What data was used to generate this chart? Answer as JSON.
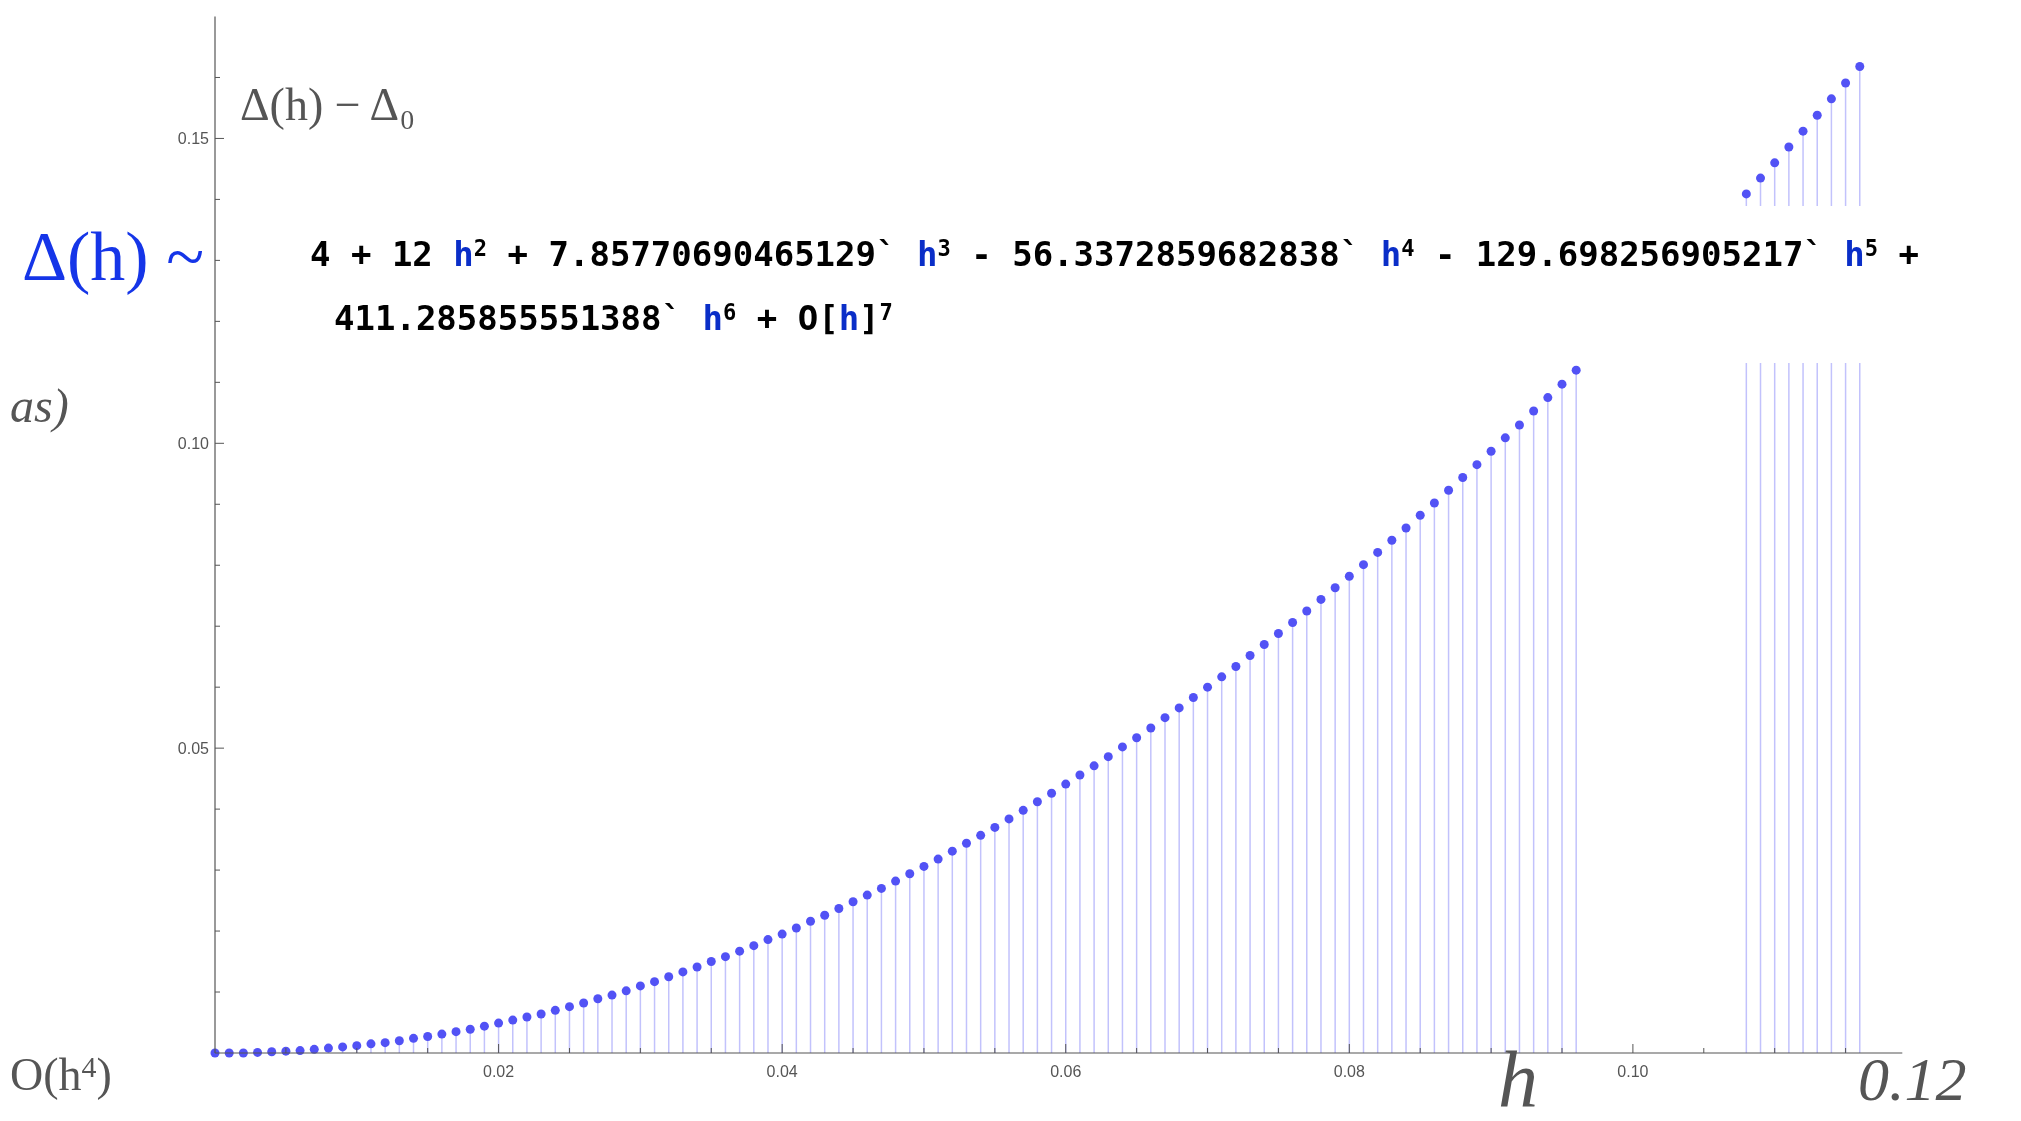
{
  "chart_data": {
    "type": "lollipop",
    "ylabel": "Δ(h) − Δ₀",
    "xlabel": "h",
    "annotations": [
      "Δ(h) ~",
      "4 + 12 h$^{2}$ + 7.85770690465129` h$^{3}$ - 56.3372859682838` h$^{4}$ - 129.698256905217` h$^{5}$ +",
      "411.285855551388` h$^{6}$ + O[h]$^{7}$",
      "as)",
      "O(h$^{4}$)",
      "0.12"
    ],
    "series": [
      {
        "color": "#5252f5",
        "x": [
          0,
          0.001,
          0.002,
          0.003,
          0.004,
          0.005,
          0.006,
          0.007,
          0.008,
          0.009,
          0.01,
          0.011,
          0.012,
          0.013,
          0.014,
          0.015,
          0.016,
          0.017,
          0.018,
          0.019,
          0.02,
          0.021,
          0.022,
          0.023,
          0.024,
          0.025,
          0.026,
          0.027,
          0.028,
          0.029,
          0.03,
          0.031,
          0.032,
          0.033,
          0.034,
          0.035,
          0.036,
          0.037,
          0.038,
          0.039,
          0.04,
          0.041,
          0.042,
          0.043,
          0.044,
          0.045,
          0.046,
          0.047,
          0.048,
          0.049,
          0.05,
          0.051,
          0.052,
          0.053,
          0.054,
          0.055,
          0.056,
          0.057,
          0.058,
          0.059,
          0.06,
          0.061,
          0.062,
          0.063,
          0.064,
          0.065,
          0.066,
          0.067,
          0.068,
          0.069,
          0.07,
          0.071,
          0.072,
          0.073,
          0.074,
          0.075,
          0.076,
          0.077,
          0.078,
          0.079,
          0.08,
          0.081,
          0.082,
          0.083,
          0.084,
          0.085,
          0.086,
          0.087,
          0.088,
          0.089,
          0.09,
          0.091,
          0.092,
          0.093,
          0.094,
          0.095,
          0.096
        ],
        "values": [
          0,
          0,
          0,
          0.0001,
          0.0002,
          0.0003,
          0.0004,
          0.0006,
          0.0008,
          0.001,
          0.0012,
          0.0015,
          0.0017,
          0.002,
          0.0024,
          0.0027,
          0.0031,
          0.0035,
          0.0039,
          0.0044,
          0.0049,
          0.0054,
          0.0059,
          0.0064,
          0.007,
          0.0076,
          0.0082,
          0.0089,
          0.0095,
          0.0102,
          0.011,
          0.0117,
          0.0125,
          0.0133,
          0.0141,
          0.015,
          0.0158,
          0.0167,
          0.0176,
          0.0186,
          0.0195,
          0.0205,
          0.0216,
          0.0226,
          0.0237,
          0.0248,
          0.0259,
          0.027,
          0.0282,
          0.0294,
          0.0306,
          0.0318,
          0.0331,
          0.0344,
          0.0357,
          0.037,
          0.0384,
          0.0398,
          0.0412,
          0.0426,
          0.0441,
          0.0456,
          0.0471,
          0.0486,
          0.0502,
          0.0517,
          0.0533,
          0.055,
          0.0566,
          0.0583,
          0.06,
          0.0617,
          0.0634,
          0.0652,
          0.067,
          0.0688,
          0.0706,
          0.0725,
          0.0744,
          0.0763,
          0.0782,
          0.0801,
          0.0821,
          0.0841,
          0.0861,
          0.0882,
          0.0902,
          0.0923,
          0.0944,
          0.0965,
          0.0987,
          0.1009,
          0.103,
          0.1053,
          0.1075,
          0.1097,
          0.112
        ]
      },
      {
        "color": "#5252f5",
        "x": [
          0.108,
          0.109,
          0.11,
          0.111,
          0.112,
          0.113,
          0.114,
          0.115,
          0.116
        ],
        "values": [
          0.1409,
          0.1435,
          0.146,
          0.1486,
          0.1512,
          0.1538,
          0.1565,
          0.1591,
          0.1618
        ]
      }
    ],
    "xlim": [
      0,
      0.119
    ],
    "ylim": [
      0,
      0.17
    ],
    "xticks": [
      {
        "value": 0.005,
        "label": null
      },
      {
        "value": 0.01,
        "label": null
      },
      {
        "value": 0.015,
        "label": null
      },
      {
        "value": 0.02,
        "label": "0.02"
      },
      {
        "value": 0.025,
        "label": null
      },
      {
        "value": 0.03,
        "label": null
      },
      {
        "value": 0.035,
        "label": null
      },
      {
        "value": 0.04,
        "label": "0.04"
      },
      {
        "value": 0.045,
        "label": null
      },
      {
        "value": 0.05,
        "label": null
      },
      {
        "value": 0.055,
        "label": null
      },
      {
        "value": 0.06,
        "label": "0.06"
      },
      {
        "value": 0.065,
        "label": null
      },
      {
        "value": 0.07,
        "label": null
      },
      {
        "value": 0.075,
        "label": null
      },
      {
        "value": 0.08,
        "label": "0.08"
      },
      {
        "value": 0.085,
        "label": null
      },
      {
        "value": 0.09,
        "label": null
      },
      {
        "value": 0.095,
        "label": null
      },
      {
        "value": 0.1,
        "label": "0.10"
      },
      {
        "value": 0.105,
        "label": null
      },
      {
        "value": 0.11,
        "label": null
      },
      {
        "value": 0.115,
        "label": null
      }
    ],
    "yticks": [
      {
        "value": 0.01,
        "label": null
      },
      {
        "value": 0.02,
        "label": null
      },
      {
        "value": 0.03,
        "label": null
      },
      {
        "value": 0.04,
        "label": null
      },
      {
        "value": 0.05,
        "label": "0.05"
      },
      {
        "value": 0.06,
        "label": null
      },
      {
        "value": 0.07,
        "label": null
      },
      {
        "value": 0.08,
        "label": null
      },
      {
        "value": 0.09,
        "label": null
      },
      {
        "value": 0.1,
        "label": "0.10"
      },
      {
        "value": 0.11,
        "label": null
      },
      {
        "value": 0.12,
        "label": null
      },
      {
        "value": 0.13,
        "label": null
      },
      {
        "value": 0.14,
        "label": null
      },
      {
        "value": 0.15,
        "label": "0.15"
      },
      {
        "value": 0.16,
        "label": null
      }
    ],
    "marker": "circle"
  }
}
